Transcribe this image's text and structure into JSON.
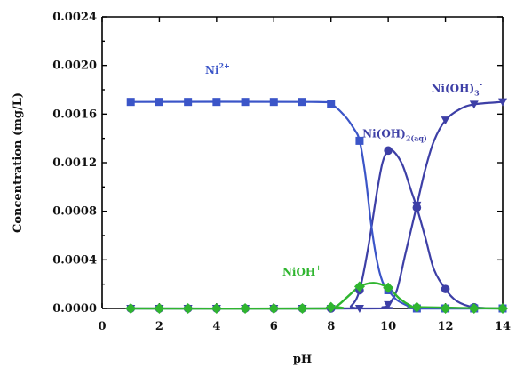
{
  "chart_data": {
    "type": "line",
    "title": "",
    "xlabel": "pH",
    "ylabel": "Concentration (mg/L)",
    "xlim": [
      0,
      14
    ],
    "ylim": [
      0,
      0.0024
    ],
    "x_ticks": [
      "0",
      "2",
      "4",
      "6",
      "8",
      "10",
      "12",
      "14"
    ],
    "y_ticks": [
      "0.0000",
      "0.0004",
      "0.0008",
      "0.0012",
      "0.0016",
      "0.0020",
      "0.0024"
    ],
    "grid": false,
    "legend": "none",
    "series": [
      {
        "name": "Ni2+",
        "label_main": "Ni",
        "label_sup": "2+",
        "label_sub": "",
        "label_tail": "",
        "color": "#3b55c8",
        "marker": "square",
        "x": [
          1,
          2,
          3,
          4,
          5,
          6,
          7,
          8,
          9,
          10,
          11,
          12,
          13,
          14
        ],
        "y": [
          0.0017,
          0.0017,
          0.0017,
          0.0017,
          0.0017,
          0.0017,
          0.0017,
          0.00168,
          0.00138,
          0.00015,
          0.0,
          0.0,
          0.0,
          0.0
        ],
        "curve": [
          [
            1,
            0.0017
          ],
          [
            7.3,
            0.0017
          ],
          [
            8,
            0.00168
          ],
          [
            8.5,
            0.00158
          ],
          [
            8.8,
            0.00148
          ],
          [
            9,
            0.00138
          ],
          [
            9.2,
            0.0011
          ],
          [
            9.4,
            0.0007
          ],
          [
            9.6,
            0.0004
          ],
          [
            9.8,
            0.00022
          ],
          [
            10,
            0.00015
          ],
          [
            10.3,
            7e-05
          ],
          [
            10.7,
            2e-05
          ],
          [
            11,
            0.0
          ],
          [
            14,
            0.0
          ]
        ]
      },
      {
        "name": "Ni(OH)2(aq)",
        "label_main": "Ni(OH)",
        "label_sup": "",
        "label_sub": "2(aq)",
        "label_tail": "",
        "color": "#3d3fa6",
        "marker": "circle",
        "x": [
          1,
          2,
          3,
          4,
          5,
          6,
          7,
          8,
          9,
          10,
          11,
          12,
          13,
          14
        ],
        "y": [
          0.0,
          0.0,
          0.0,
          0.0,
          0.0,
          0.0,
          0.0,
          0.0,
          0.00015,
          0.0013,
          0.00083,
          0.00016,
          1e-05,
          0.0
        ],
        "curve": [
          [
            1,
            0.0
          ],
          [
            8.3,
            0.0
          ],
          [
            8.7,
            2e-05
          ],
          [
            9,
            0.00015
          ],
          [
            9.3,
            0.0005
          ],
          [
            9.6,
            0.00095
          ],
          [
            9.8,
            0.0012
          ],
          [
            10,
            0.0013
          ],
          [
            10.2,
            0.00129
          ],
          [
            10.5,
            0.00118
          ],
          [
            10.8,
            0.00097
          ],
          [
            11,
            0.00083
          ],
          [
            11.3,
            0.00058
          ],
          [
            11.6,
            0.00032
          ],
          [
            12,
            0.00016
          ],
          [
            12.4,
            6e-05
          ],
          [
            13,
            1e-05
          ],
          [
            14,
            0.0
          ]
        ]
      },
      {
        "name": "Ni(OH)3-",
        "label_main": "Ni(OH)",
        "label_sup": "",
        "label_sub": "3",
        "label_tail": "-",
        "color": "#3d3fa6",
        "marker": "triangle-down",
        "x": [
          1,
          2,
          3,
          4,
          5,
          6,
          7,
          8,
          9,
          10,
          11,
          12,
          13,
          14
        ],
        "y": [
          0.0,
          0.0,
          0.0,
          0.0,
          0.0,
          0.0,
          0.0,
          0.0,
          0.0,
          3e-05,
          0.00085,
          0.00155,
          0.00168,
          0.0017
        ],
        "curve": [
          [
            1,
            0.0
          ],
          [
            9.4,
            0.0
          ],
          [
            9.8,
            1e-05
          ],
          [
            10,
            3e-05
          ],
          [
            10.3,
            0.00015
          ],
          [
            10.6,
            0.00045
          ],
          [
            11,
            0.00085
          ],
          [
            11.3,
            0.00115
          ],
          [
            11.6,
            0.00138
          ],
          [
            12,
            0.00155
          ],
          [
            12.5,
            0.00164
          ],
          [
            13,
            0.00168
          ],
          [
            14,
            0.0017
          ]
        ]
      },
      {
        "name": "NiOH+",
        "label_main": "NiOH",
        "label_sup": "+",
        "label_sub": "",
        "label_tail": "",
        "color": "#2fb52f",
        "marker": "diamond",
        "x": [
          1,
          2,
          3,
          4,
          5,
          6,
          7,
          8,
          9,
          10,
          11,
          12,
          13,
          14
        ],
        "y": [
          0.0,
          0.0,
          0.0,
          0.0,
          0.0,
          0.0,
          0.0,
          1e-05,
          0.00018,
          0.00017,
          1e-05,
          0.0,
          0.0,
          0.0
        ],
        "curve": [
          [
            1,
            0.0
          ],
          [
            7.8,
            0.0
          ],
          [
            8.2,
            2e-05
          ],
          [
            8.6,
            0.0001
          ],
          [
            9,
            0.00018
          ],
          [
            9.5,
            0.00021
          ],
          [
            10,
            0.00017
          ],
          [
            10.4,
            8e-05
          ],
          [
            10.8,
            2e-05
          ],
          [
            11,
            1e-05
          ],
          [
            14,
            0.0
          ]
        ]
      }
    ],
    "series_label_anchor": {
      "Ni2+": [
        3.6,
        0.00193
      ],
      "Ni(OH)2(aq)": [
        9.1,
        0.00141
      ],
      "Ni(OH)3-": [
        11.5,
        0.00178
      ],
      "NiOH+": [
        6.3,
        0.00027
      ]
    }
  }
}
